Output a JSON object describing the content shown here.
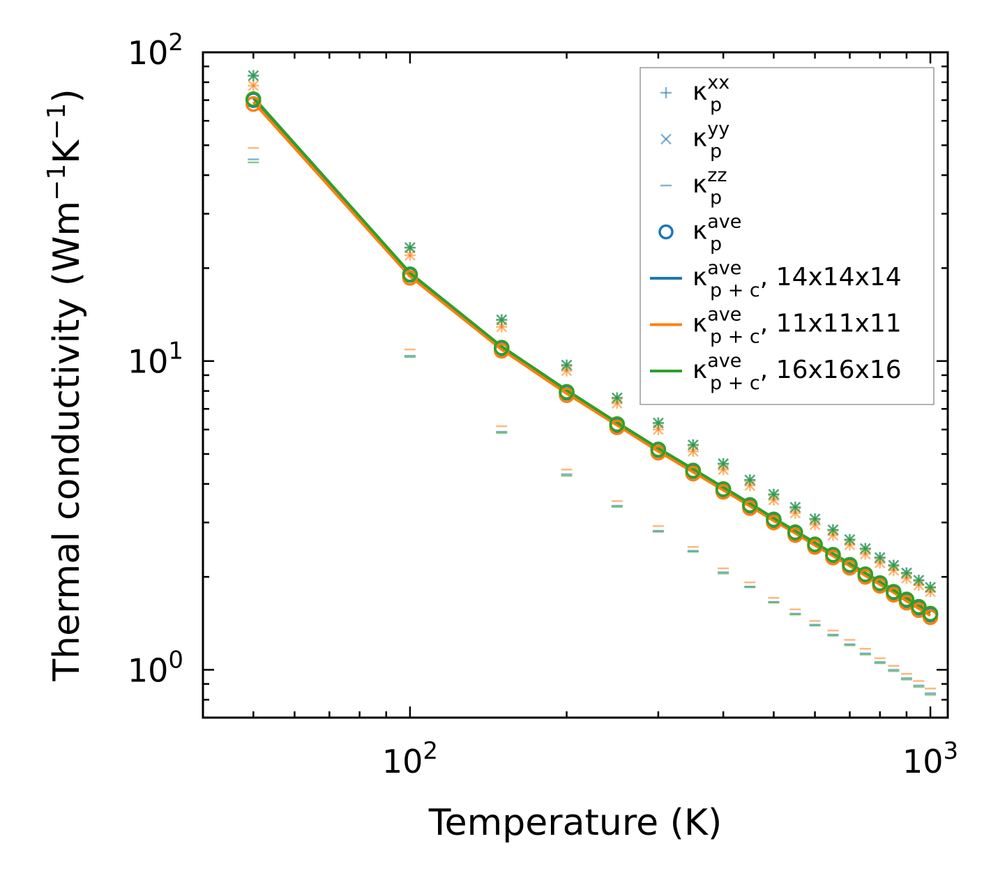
{
  "chart_data": {
    "type": "line",
    "xscale": "log",
    "yscale": "log",
    "xlabel": "Temperature (K)",
    "ylabel": {
      "base": "Thermal conductivity (Wm",
      "sup1": "−1",
      "mid": "K",
      "sup2": "−1",
      "end": ")"
    },
    "xlim": [
      40,
      1080
    ],
    "ylim": [
      0.7,
      100
    ],
    "xticks": [
      {
        "base": "10",
        "exp": "2",
        "value": 100
      },
      {
        "base": "10",
        "exp": "3",
        "value": 1000
      }
    ],
    "yticks": [
      {
        "base": "10",
        "exp": "0",
        "value": 1
      },
      {
        "base": "10",
        "exp": "1",
        "value": 10
      },
      {
        "base": "10",
        "exp": "2",
        "value": 100
      }
    ],
    "temperatures": [
      50,
      100,
      150,
      200,
      250,
      300,
      350,
      400,
      450,
      500,
      550,
      600,
      650,
      700,
      750,
      800,
      850,
      900,
      950,
      1000
    ],
    "colors": {
      "blue": "#1f77b4",
      "orange": "#ff7f0e",
      "green": "#2ca02c"
    },
    "series": [
      {
        "name": "14x14x14",
        "color": "#1f77b4",
        "kxx": [
          84,
          23.3,
          13.6,
          9.7,
          7.6,
          6.3,
          5.35,
          4.65,
          4.12,
          3.7,
          3.36,
          3.08,
          2.84,
          2.64,
          2.47,
          2.31,
          2.18,
          2.06,
          1.95,
          1.85
        ],
        "kyy": [
          84,
          23.3,
          13.6,
          9.7,
          7.6,
          6.3,
          5.35,
          4.65,
          4.12,
          3.7,
          3.36,
          3.08,
          2.84,
          2.64,
          2.47,
          2.31,
          2.18,
          2.06,
          1.95,
          1.85
        ],
        "kzz": [
          45,
          10.4,
          5.9,
          4.3,
          3.4,
          2.82,
          2.43,
          2.07,
          1.86,
          1.66,
          1.52,
          1.4,
          1.3,
          1.21,
          1.13,
          1.06,
          1.0,
          0.94,
          0.89,
          0.84
        ],
        "kave": [
          70,
          19,
          11,
          7.9,
          6.2,
          5.15,
          4.4,
          3.83,
          3.4,
          3.05,
          2.78,
          2.54,
          2.35,
          2.18,
          2.03,
          1.9,
          1.78,
          1.68,
          1.59,
          1.51
        ],
        "kpc": [
          71,
          19.2,
          11.1,
          8.0,
          6.3,
          5.2,
          4.45,
          3.88,
          3.44,
          3.09,
          2.81,
          2.57,
          2.37,
          2.2,
          2.05,
          1.92,
          1.8,
          1.7,
          1.61,
          1.53
        ]
      },
      {
        "name": "11x11x11",
        "color": "#ff7f0e",
        "kxx": [
          78,
          22,
          12.9,
          9.3,
          7.3,
          6.0,
          5.1,
          4.45,
          3.95,
          3.55,
          3.22,
          2.95,
          2.73,
          2.54,
          2.37,
          2.22,
          2.1,
          1.98,
          1.88,
          1.79
        ],
        "kyy": [
          78,
          22,
          12.9,
          9.3,
          7.3,
          6.0,
          5.1,
          4.45,
          3.95,
          3.55,
          3.22,
          2.95,
          2.73,
          2.54,
          2.37,
          2.22,
          2.1,
          1.98,
          1.88,
          1.79
        ],
        "kzz": [
          49,
          10.9,
          6.15,
          4.45,
          3.52,
          2.92,
          2.5,
          2.13,
          1.92,
          1.71,
          1.57,
          1.44,
          1.34,
          1.25,
          1.17,
          1.09,
          1.03,
          0.97,
          0.92,
          0.87
        ],
        "kave": [
          68,
          18.6,
          10.8,
          7.75,
          6.1,
          5.05,
          4.32,
          3.77,
          3.34,
          3.0,
          2.73,
          2.5,
          2.31,
          2.14,
          2.0,
          1.87,
          1.75,
          1.65,
          1.56,
          1.48
        ],
        "kpc": [
          69,
          18.8,
          10.9,
          7.85,
          6.2,
          5.1,
          4.37,
          3.82,
          3.39,
          3.04,
          2.77,
          2.53,
          2.34,
          2.17,
          2.02,
          1.89,
          1.78,
          1.67,
          1.58,
          1.5
        ]
      },
      {
        "name": "16x16x16",
        "color": "#2ca02c",
        "kxx": [
          84,
          23.3,
          13.6,
          9.7,
          7.6,
          6.3,
          5.35,
          4.65,
          4.12,
          3.7,
          3.36,
          3.08,
          2.84,
          2.64,
          2.47,
          2.31,
          2.18,
          2.06,
          1.95,
          1.85
        ],
        "kyy": [
          84,
          23.3,
          13.6,
          9.7,
          7.6,
          6.3,
          5.35,
          4.65,
          4.12,
          3.7,
          3.36,
          3.08,
          2.84,
          2.64,
          2.47,
          2.31,
          2.18,
          2.06,
          1.95,
          1.85
        ],
        "kzz": [
          44,
          10.3,
          5.85,
          4.25,
          3.37,
          2.8,
          2.41,
          2.05,
          1.85,
          1.65,
          1.51,
          1.39,
          1.29,
          1.2,
          1.12,
          1.05,
          0.99,
          0.93,
          0.88,
          0.83
        ],
        "kave": [
          70.5,
          19.1,
          11.05,
          7.95,
          6.25,
          5.17,
          4.42,
          3.85,
          3.42,
          3.07,
          2.79,
          2.55,
          2.36,
          2.19,
          2.04,
          1.91,
          1.79,
          1.69,
          1.6,
          1.52
        ],
        "kpc": [
          71.5,
          19.3,
          11.15,
          8.05,
          6.32,
          5.22,
          4.47,
          3.9,
          3.46,
          3.1,
          2.82,
          2.58,
          2.38,
          2.21,
          2.06,
          1.93,
          1.81,
          1.71,
          1.62,
          1.54
        ]
      }
    ],
    "legend": {
      "location": "upper-right",
      "entries": [
        {
          "marker": "plus",
          "color": "#1f77b4",
          "base": "κ",
          "sub": "p",
          "sup": "xx",
          "suffix": ""
        },
        {
          "marker": "x",
          "color": "#1f77b4",
          "base": "κ",
          "sub": "p",
          "sup": "yy",
          "suffix": ""
        },
        {
          "marker": "dash",
          "color": "#1f77b4",
          "base": "κ",
          "sub": "p",
          "sup": "zz",
          "suffix": ""
        },
        {
          "marker": "circle",
          "color": "#1f77b4",
          "base": "κ",
          "sub": "p",
          "sup": "ave",
          "suffix": ""
        },
        {
          "marker": "line",
          "color": "#1f77b4",
          "base": "κ",
          "sub": "p + c",
          "sup": "ave",
          "suffix": ", 14x14x14"
        },
        {
          "marker": "line",
          "color": "#ff7f0e",
          "base": "κ",
          "sub": "p + c",
          "sup": "ave",
          "suffix": ", 11x11x11"
        },
        {
          "marker": "line",
          "color": "#2ca02c",
          "base": "κ",
          "sub": "p + c",
          "sup": "ave",
          "suffix": ", 16x16x16"
        }
      ]
    }
  }
}
